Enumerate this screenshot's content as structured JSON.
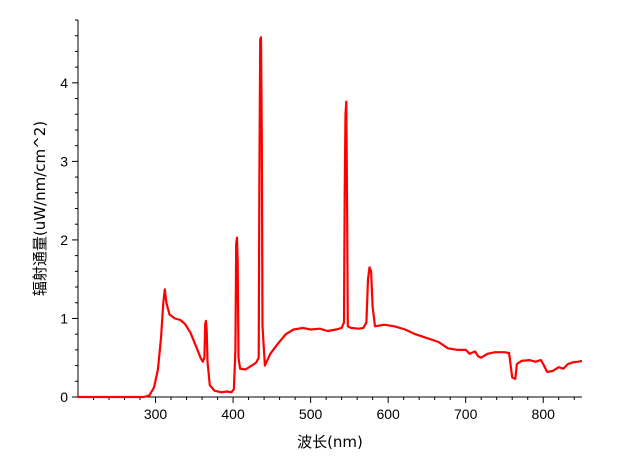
{
  "chart_data": {
    "type": "line",
    "title": "",
    "xlabel": "波长(nm)",
    "ylabel": "辐射通量(uW/nm/cm^2)",
    "xlim": [
      200,
      850
    ],
    "ylim": [
      0,
      4.8
    ],
    "x_ticks": [
      300,
      400,
      500,
      600,
      700,
      800
    ],
    "y_ticks": [
      0,
      1,
      2,
      3,
      4
    ],
    "grid": false,
    "legend": "none",
    "series": [
      {
        "color": "#ff0000",
        "points": [
          [
            200,
            0.0
          ],
          [
            285,
            0.0
          ],
          [
            292,
            0.02
          ],
          [
            298,
            0.12
          ],
          [
            303,
            0.35
          ],
          [
            307,
            0.75
          ],
          [
            310,
            1.2
          ],
          [
            312,
            1.37
          ],
          [
            314,
            1.2
          ],
          [
            318,
            1.05
          ],
          [
            325,
            1.0
          ],
          [
            332,
            0.98
          ],
          [
            338,
            0.93
          ],
          [
            345,
            0.82
          ],
          [
            352,
            0.65
          ],
          [
            358,
            0.5
          ],
          [
            361,
            0.45
          ],
          [
            363,
            0.5
          ],
          [
            364,
            0.92
          ],
          [
            365,
            0.97
          ],
          [
            366,
            0.85
          ],
          [
            367,
            0.45
          ],
          [
            370,
            0.15
          ],
          [
            376,
            0.08
          ],
          [
            385,
            0.06
          ],
          [
            392,
            0.07
          ],
          [
            398,
            0.06
          ],
          [
            401,
            0.1
          ],
          [
            403,
            0.6
          ],
          [
            404,
            1.95
          ],
          [
            405,
            2.03
          ],
          [
            406,
            1.7
          ],
          [
            407,
            0.5
          ],
          [
            409,
            0.36
          ],
          [
            416,
            0.35
          ],
          [
            424,
            0.4
          ],
          [
            430,
            0.44
          ],
          [
            433,
            0.5
          ],
          [
            434,
            2.8
          ],
          [
            435,
            4.55
          ],
          [
            436,
            4.58
          ],
          [
            437,
            3.3
          ],
          [
            438,
            0.9
          ],
          [
            441,
            0.4
          ],
          [
            448,
            0.55
          ],
          [
            458,
            0.68
          ],
          [
            468,
            0.8
          ],
          [
            478,
            0.86
          ],
          [
            490,
            0.88
          ],
          [
            500,
            0.86
          ],
          [
            512,
            0.87
          ],
          [
            522,
            0.84
          ],
          [
            533,
            0.86
          ],
          [
            540,
            0.88
          ],
          [
            543,
            0.95
          ],
          [
            544,
            2.6
          ],
          [
            545,
            3.6
          ],
          [
            546,
            3.76
          ],
          [
            547,
            2.4
          ],
          [
            548,
            0.9
          ],
          [
            552,
            0.88
          ],
          [
            562,
            0.87
          ],
          [
            568,
            0.88
          ],
          [
            572,
            0.95
          ],
          [
            574,
            1.5
          ],
          [
            576,
            1.65
          ],
          [
            578,
            1.6
          ],
          [
            580,
            1.15
          ],
          [
            583,
            0.9
          ],
          [
            595,
            0.92
          ],
          [
            608,
            0.9
          ],
          [
            622,
            0.86
          ],
          [
            635,
            0.8
          ],
          [
            650,
            0.75
          ],
          [
            665,
            0.7
          ],
          [
            677,
            0.62
          ],
          [
            690,
            0.6
          ],
          [
            700,
            0.6
          ],
          [
            705,
            0.55
          ],
          [
            712,
            0.58
          ],
          [
            716,
            0.52
          ],
          [
            720,
            0.5
          ],
          [
            728,
            0.55
          ],
          [
            738,
            0.57
          ],
          [
            750,
            0.57
          ],
          [
            756,
            0.56
          ],
          [
            758,
            0.4
          ],
          [
            760,
            0.25
          ],
          [
            764,
            0.23
          ],
          [
            766,
            0.42
          ],
          [
            772,
            0.46
          ],
          [
            782,
            0.47
          ],
          [
            790,
            0.45
          ],
          [
            797,
            0.47
          ],
          [
            800,
            0.42
          ],
          [
            805,
            0.32
          ],
          [
            812,
            0.33
          ],
          [
            820,
            0.38
          ],
          [
            826,
            0.36
          ],
          [
            832,
            0.42
          ],
          [
            838,
            0.44
          ],
          [
            845,
            0.45
          ],
          [
            850,
            0.46
          ]
        ]
      }
    ]
  }
}
